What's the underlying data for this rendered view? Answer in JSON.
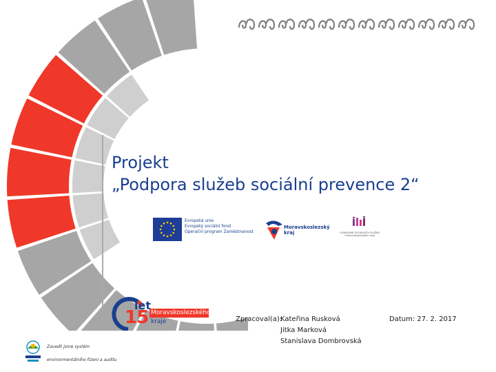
{
  "decor": {
    "wave_count": 12,
    "wave_color": "#7f7f7f",
    "accent_red": "#ef3829",
    "accent_gray": "#a6a6a6",
    "red_segments": 4,
    "gray_segments_outer": 9
  },
  "title": {
    "line1": "Projekt",
    "line2": "„Podpora služeb sociální prevence 2“"
  },
  "logos": {
    "eu_line1": "Evropská unie",
    "eu_line2": "Evropský sociální fond",
    "eu_line3": "Operační program Zaměstnanost",
    "msk_line1": "Moravskoslezský",
    "msk_line2": "kraj",
    "rp_text": "PLÁNOVÁNÍ SOCIÁLNÍCH SLUŽEB v Moravskoslezském kraji"
  },
  "anniversary": {
    "let": "let",
    "number": "15",
    "region": "Moravskoslezského",
    "kraje": "kraje"
  },
  "meta": {
    "prepared_label": "Zpracoval(a):",
    "names": [
      "Kateřina Rusková",
      "Jitka Marková",
      "Stanislava Dombrovská"
    ],
    "date_label": "Datum:",
    "date_value": "27. 2. 2017"
  },
  "ems": {
    "line1": "Zavedli jsme systém",
    "line2": "environmentálního řízení a auditu"
  }
}
